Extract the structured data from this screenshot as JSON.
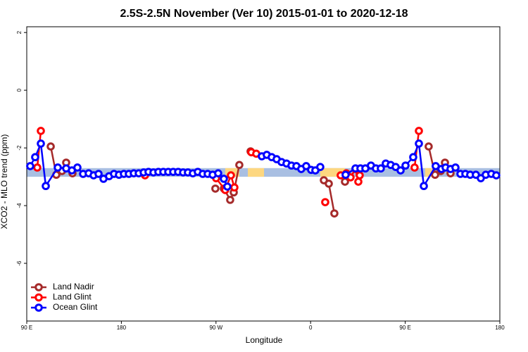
{
  "chart_data": {
    "type": "line",
    "title": "2.5S-2.5N November (Ver 10)   2015-01-01 to 2020-12-18",
    "x_label": "Longitude",
    "y_label": "XCO2 - MLO trend (ppm)",
    "xlim": [
      90,
      540
    ],
    "xticks": [
      {
        "value": 90,
        "label": "90 E"
      },
      180,
      {
        "value": 270,
        "label": "90 W"
      },
      {
        "value": 360,
        "label": "0"
      },
      {
        "value": 450,
        "label": "90 E"
      },
      {
        "value": 540,
        "label": "180"
      }
    ],
    "ylim": [
      -8,
      2.2
    ],
    "yticks": [
      2,
      0,
      -2,
      -4,
      -6
    ],
    "legend": "bottom-left",
    "band": {
      "color": "#a9bfe2",
      "ylim": [
        -3.0,
        -2.7
      ]
    },
    "band_segments": {
      "color": "#fdd780",
      "ranges": [
        [
          278.8,
          292.2
        ],
        [
          300.3,
          315.7
        ],
        [
          369.2,
          392.7
        ],
        [
          469.0,
          476.4
        ]
      ]
    },
    "series": [
      {
        "name": "Land Nadir",
        "color": "#a52a2a",
        "x": [
          112.8,
          118.1,
          123.5,
          127.5,
          133.5,
          null,
          269.4,
          null,
          277.5,
          283.5,
          286.9,
          292.2,
          null,
          302.9,
          null,
          372.6,
          377.3,
          382.6,
          null,
          392.7,
          null,
          472.3,
          478.4,
          483.8,
          487.8,
          493.1
        ],
        "values": [
          -1.95,
          -2.93,
          -2.8,
          -2.51,
          -2.88,
          null,
          -3.41,
          null,
          -3.41,
          -3.8,
          -3.54,
          -2.59,
          null,
          -2.12,
          null,
          -3.12,
          -3.24,
          -4.27,
          null,
          -3.17,
          null,
          -1.95,
          -2.93,
          -2.8,
          -2.51,
          -2.88
        ]
      },
      {
        "name": "Land Glint",
        "color": "#ff0000",
        "x": [
          100.0,
          103.4,
          null,
          202.5,
          null,
          270.1,
          278.8,
          284.2,
          287.5,
          null,
          303.6,
          308.3,
          null,
          373.9,
          null,
          388.6,
          394.0,
          398.0,
          402.7,
          405.4,
          406.7,
          null,
          458.9,
          463.0
        ],
        "values": [
          -2.68,
          -1.41,
          null,
          -2.95,
          null,
          -3.05,
          -3.46,
          -2.95,
          -3.37,
          null,
          -2.15,
          -2.2,
          null,
          -3.88,
          null,
          -2.95,
          -2.88,
          -3.02,
          -2.73,
          -3.17,
          -2.95,
          null,
          -2.68,
          -1.41
        ]
      },
      {
        "name": "Ocean Glint",
        "color": "#0000ff",
        "x": [
          93.3,
          98.0,
          103.4,
          108.1,
          119.5,
          127.5,
          132.9,
          138.2,
          143.6,
          148.9,
          153.6,
          158.3,
          163.0,
          168.3,
          173.0,
          177.7,
          182.4,
          187.1,
          191.8,
          196.5,
          201.2,
          205.8,
          210.5,
          215.2,
          219.9,
          224.6,
          229.3,
          234.0,
          238.7,
          243.3,
          248.0,
          252.7,
          257.4,
          262.1,
          266.8,
          272.1,
          277.5,
          280.8,
          null,
          313.6,
          318.3,
          323.0,
          327.7,
          332.4,
          337.1,
          341.8,
          346.5,
          351.1,
          355.8,
          360.5,
          364.5,
          369.2,
          null,
          393.3,
          402.7,
          407.4,
          412.1,
          417.4,
          422.1,
          426.8,
          431.5,
          436.2,
          440.9,
          445.6,
          450.3,
          457.6,
          463.0,
          467.7,
          479.0,
          484.4,
          488.4,
          493.1,
          497.8,
          502.5,
          507.2,
          511.8,
          517.2,
          521.9,
          526.6,
          531.9,
          536.6
        ],
        "values": [
          -2.63,
          -2.32,
          -1.85,
          -3.32,
          -2.68,
          -2.71,
          -2.78,
          -2.68,
          -2.9,
          -2.88,
          -2.95,
          -2.9,
          -3.07,
          -2.98,
          -2.9,
          -2.93,
          -2.9,
          -2.9,
          -2.88,
          -2.88,
          -2.85,
          -2.83,
          -2.85,
          -2.83,
          -2.83,
          -2.83,
          -2.83,
          -2.83,
          -2.85,
          -2.85,
          -2.88,
          -2.83,
          -2.9,
          -2.9,
          -2.93,
          -2.88,
          -3.07,
          -3.34,
          null,
          -2.29,
          -2.24,
          -2.32,
          -2.39,
          -2.49,
          -2.54,
          -2.61,
          -2.63,
          -2.73,
          -2.63,
          -2.76,
          -2.78,
          -2.66,
          null,
          -2.93,
          -2.71,
          -2.71,
          -2.71,
          -2.61,
          -2.71,
          -2.71,
          -2.54,
          -2.59,
          -2.66,
          -2.78,
          -2.61,
          -2.32,
          -1.85,
          -3.32,
          -2.63,
          -2.73,
          -2.68,
          -2.73,
          -2.68,
          -2.9,
          -2.9,
          -2.93,
          -2.93,
          -3.05,
          -2.93,
          -2.9,
          -2.95
        ]
      }
    ]
  }
}
